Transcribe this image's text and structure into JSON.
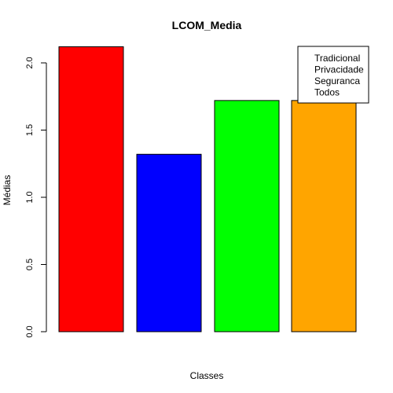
{
  "chart_data": {
    "type": "bar",
    "title": "LCOM_Media",
    "xlabel": "Classes",
    "ylabel": "Médias",
    "ylim": [
      0,
      2.0
    ],
    "y_ticks": [
      "0.0",
      "0.5",
      "1.0",
      "1.5",
      "2.0"
    ],
    "y_tick_values": [
      0,
      0.5,
      1.0,
      1.5,
      2.0
    ],
    "grid": false,
    "legend_position": "top-right",
    "series": [
      {
        "name": "Tradicional",
        "value": 2.12,
        "color": "#ff0000"
      },
      {
        "name": "Privacidade",
        "value": 1.32,
        "color": "#0000ff"
      },
      {
        "name": "Seguranca",
        "value": 1.72,
        "color": "#00ff00"
      },
      {
        "name": "Todos",
        "value": 1.72,
        "color": "#ffa500"
      }
    ]
  }
}
